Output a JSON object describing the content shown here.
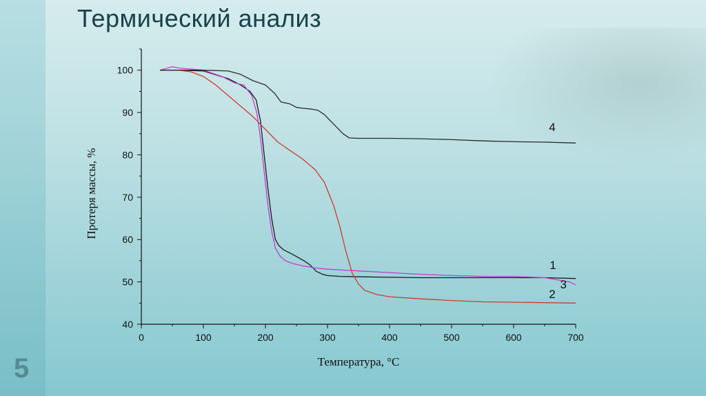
{
  "slide": {
    "title": "Термический анализ",
    "number": "5"
  },
  "chart_data": {
    "type": "line",
    "xlabel": "Температура, °С",
    "ylabel": "Протеря массы, %",
    "xlim": [
      0,
      700
    ],
    "ylim": [
      40,
      105
    ],
    "xticks": [
      0,
      100,
      200,
      300,
      400,
      500,
      600,
      700
    ],
    "yticks": [
      40,
      50,
      60,
      70,
      80,
      90,
      100
    ],
    "grid": false,
    "series": [
      {
        "name": "1",
        "color": "#1a1a1a",
        "x": [
          30,
          60,
          100,
          140,
          160,
          175,
          185,
          192,
          198,
          204,
          210,
          216,
          222,
          230,
          240,
          250,
          262,
          272,
          282,
          292,
          300,
          320,
          350,
          400,
          450,
          500,
          550,
          600,
          650,
          700
        ],
        "y": [
          100,
          100,
          99.8,
          98,
          96.5,
          95,
          93,
          88,
          80,
          72,
          65,
          60,
          58.5,
          57.5,
          56.8,
          56,
          55,
          54,
          52.5,
          51.8,
          51.5,
          51.3,
          51.2,
          51.1,
          51,
          51,
          51,
          51,
          51,
          50.8
        ]
      },
      {
        "name": "2",
        "color": "#d03a2a",
        "x": [
          30,
          60,
          80,
          100,
          120,
          140,
          160,
          180,
          200,
          220,
          240,
          260,
          280,
          295,
          310,
          320,
          330,
          340,
          350,
          360,
          380,
          400,
          450,
          500,
          550,
          600,
          650,
          700
        ],
        "y": [
          100,
          100,
          99.6,
          98.5,
          96.5,
          94,
          91.5,
          89,
          86,
          83,
          81,
          79,
          76.5,
          73.5,
          68,
          63,
          57,
          52,
          49.5,
          48,
          47,
          46.5,
          46,
          45.6,
          45.3,
          45.2,
          45.1,
          45
        ]
      },
      {
        "name": "3",
        "color": "#c43bd0",
        "x": [
          30,
          50,
          60,
          100,
          130,
          150,
          165,
          178,
          186,
          192,
          198,
          204,
          210,
          216,
          224,
          232,
          245,
          260,
          280,
          300,
          350,
          400,
          450,
          500,
          550,
          600,
          650,
          690,
          700
        ],
        "y": [
          100,
          100.8,
          100.5,
          100,
          98.5,
          97,
          96.5,
          94,
          90,
          84,
          76,
          68,
          62,
          58,
          56,
          55,
          54.3,
          53.8,
          53.3,
          53,
          52.6,
          52.2,
          51.8,
          51.5,
          51.3,
          51.3,
          51,
          50,
          49.3
        ]
      },
      {
        "name": "4",
        "color": "#2a2a2a",
        "x": [
          30,
          60,
          100,
          140,
          160,
          180,
          200,
          215,
          225,
          240,
          250,
          260,
          275,
          285,
          295,
          305,
          315,
          325,
          335,
          350,
          400,
          450,
          500,
          550,
          600,
          650,
          700
        ],
        "y": [
          100,
          100,
          100,
          99.8,
          99,
          97.5,
          96.5,
          94.5,
          92.5,
          92,
          91.2,
          91,
          90.8,
          90.5,
          89.5,
          88,
          86.5,
          85,
          84,
          83.9,
          83.9,
          83.8,
          83.6,
          83.3,
          83.1,
          83,
          82.8
        ]
      }
    ],
    "labels": [
      {
        "text": "4",
        "x": 657,
        "y": 85.6
      },
      {
        "text": "1",
        "x": 658,
        "y": 53
      },
      {
        "text": "3",
        "x": 675,
        "y": 48.5
      },
      {
        "text": "2",
        "x": 657,
        "y": 46.2
      }
    ]
  }
}
